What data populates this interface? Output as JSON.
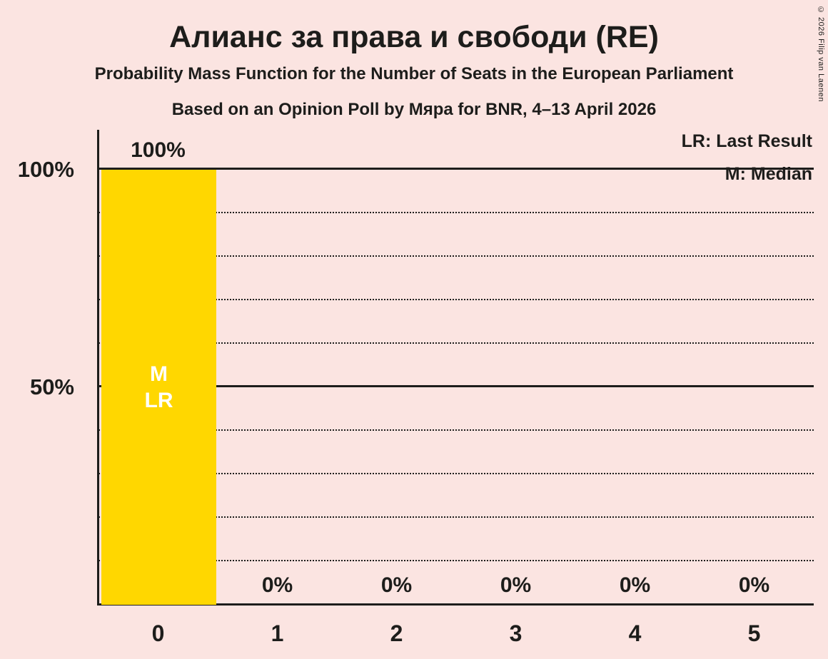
{
  "title": "Алианс за права и свободи (RE)",
  "subtitles": [
    "Probability Mass Function for the Number of Seats in the European Parliament",
    "Based on an Opinion Poll by Мяра for BNR, 4–13 April 2026"
  ],
  "copyright": "© 2026 Filip van Laenen",
  "colors": {
    "background": "#fbe4e1",
    "bar": "#ffd700",
    "text": "#1d1d1b",
    "bar_annotation": "#ffffff"
  },
  "chart_data": {
    "type": "bar",
    "title": "Алианс за права и свободи (RE)",
    "categories": [
      "0",
      "1",
      "2",
      "3",
      "4",
      "5"
    ],
    "values": [
      100,
      0,
      0,
      0,
      0,
      0
    ],
    "value_labels": [
      "100%",
      "0%",
      "0%",
      "0%",
      "0%",
      "0%"
    ],
    "bar_annotations": [
      [
        "M",
        "LR"
      ],
      [],
      [],
      [],
      [],
      []
    ],
    "xlabel": "",
    "ylabel": "",
    "ylim": [
      0,
      100
    ],
    "yticks": [
      {
        "value": 50,
        "label": "50%"
      },
      {
        "value": 100,
        "label": "100%"
      }
    ],
    "gridlines": {
      "solid": [
        50,
        100
      ],
      "dotted": [
        10,
        20,
        30,
        40,
        60,
        70,
        80,
        90
      ]
    },
    "legend": {
      "position": "top-right",
      "entries": [
        "LR: Last Result",
        "M: Median"
      ]
    }
  }
}
